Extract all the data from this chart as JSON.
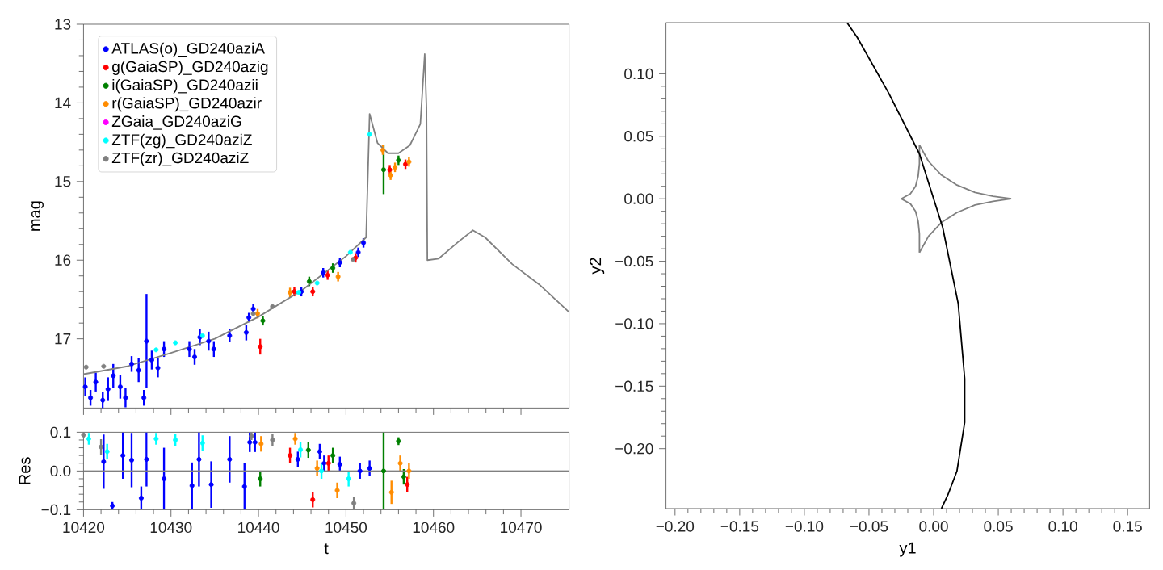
{
  "chart_data": [
    {
      "type": "scatter",
      "ylabel": "mag",
      "xlim": [
        10420,
        10475.5
      ],
      "ylim": [
        17.88,
        13
      ],
      "xticks": [
        10420,
        10430,
        10440,
        10450,
        10460,
        10470
      ],
      "yticks": [
        13,
        14,
        15,
        16,
        17
      ],
      "tick_labels": "y",
      "legend": "top left",
      "marker": "circle",
      "series": [
        {
          "name": "ATLAS(o)_GD240aziA",
          "color": "#0000ff",
          "x": [
            10420.2,
            10420.8,
            10421.4,
            10422.2,
            10422.8,
            10423.4,
            10424.2,
            10424.8,
            10425.5,
            10426.3,
            10426.9,
            10427.2,
            10427.8,
            10428.5,
            10429.2,
            10432.1,
            10432.7,
            10433.3,
            10434.3,
            10434.9,
            10436.7,
            10438.6,
            10438.9,
            10439.4,
            10444.9,
            10447.4,
            10449.3,
            10451.4,
            10452.0
          ],
          "values": [
            17.61,
            17.75,
            17.55,
            17.78,
            17.64,
            17.47,
            17.61,
            17.75,
            17.32,
            17.4,
            17.75,
            17.03,
            17.27,
            17.37,
            17.13,
            17.13,
            17.23,
            16.98,
            17.03,
            17.13,
            16.96,
            16.92,
            16.73,
            16.62,
            16.4,
            16.16,
            16.03,
            15.9,
            15.78
          ],
          "errors": [
            0.12,
            0.1,
            0.12,
            0.1,
            0.15,
            0.15,
            0.15,
            0.12,
            0.1,
            0.15,
            0.1,
            0.6,
            0.12,
            0.12,
            0.1,
            0.1,
            0.1,
            0.1,
            0.12,
            0.1,
            0.08,
            0.1,
            0.06,
            0.06,
            0.06,
            0.06,
            0.06,
            0.06,
            0.06
          ]
        },
        {
          "name": "g(GaiaSP)_GD240azig",
          "color": "#ff0000",
          "x": [
            10440.2,
            10444.1,
            10446.2,
            10447.9,
            10451.1,
            10455.0,
            10456.8
          ],
          "values": [
            17.1,
            16.4,
            16.4,
            16.19,
            15.97,
            14.85,
            14.78
          ],
          "errors": [
            0.1,
            0.06,
            0.06,
            0.06,
            0.06,
            0.06,
            0.06
          ]
        },
        {
          "name": "i(GaiaSP)_GD240azii",
          "color": "#008000",
          "x": [
            10440.5,
            10445.8,
            10448.5,
            10454.3,
            10456.0
          ],
          "values": [
            16.77,
            16.27,
            16.1,
            14.85,
            14.73
          ],
          "errors": [
            0.06,
            0.06,
            0.06,
            0.31,
            0.06
          ]
        },
        {
          "name": "r(GaiaSP)_GD240azir",
          "color": "#ff8c00",
          "x": [
            10439.9,
            10443.6,
            10449.1,
            10454.2,
            10455.1,
            10455.6,
            10457.2
          ],
          "values": [
            16.68,
            16.41,
            16.21,
            14.6,
            14.92,
            14.82,
            14.75
          ],
          "errors": [
            0.06,
            0.06,
            0.06,
            0.06,
            0.06,
            0.06,
            0.06
          ]
        },
        {
          "name": "ZGaia_GD240aziG",
          "color": "#ff00ff"
        },
        {
          "name": "ZTF(zg)_GD240aziZ",
          "color": "#00ffff",
          "x": [
            10428.3,
            10430.5,
            10433.6,
            10444.6,
            10446.7,
            10450.5,
            10452.7
          ],
          "values": [
            17.14,
            17.05,
            16.96,
            16.41,
            16.29,
            15.9,
            14.4
          ]
        },
        {
          "name": "ZTF(zr)_GD240aziZ",
          "color": "#808080",
          "x": [
            10420.3,
            10422.3,
            10439.4,
            10441.6,
            10450.8
          ],
          "values": [
            17.36,
            17.35,
            16.68,
            16.59,
            15.99
          ]
        },
        {
          "type": "line",
          "marker": "none",
          "color": "#808080",
          "x": [
            10420,
            10425,
            10430,
            10435,
            10440,
            10445,
            10450,
            10452.3,
            10452.7,
            10453.6,
            10454.8,
            10456,
            10457.3,
            10458.5,
            10459.0,
            10459.2,
            10459.3,
            10460.6,
            10462.8,
            10464.5,
            10465.9,
            10469.0,
            10472.1,
            10475.5
          ],
          "values": [
            17.45,
            17.35,
            17.18,
            17.0,
            16.72,
            16.38,
            15.95,
            15.71,
            14.14,
            14.51,
            14.64,
            14.64,
            14.54,
            14.27,
            13.38,
            14.06,
            16.0,
            15.98,
            15.77,
            15.62,
            15.71,
            16.05,
            16.31,
            16.66
          ]
        }
      ]
    },
    {
      "type": "scatter",
      "xlabel": "t",
      "ylabel": "Res",
      "xlim": [
        10420,
        10475.5
      ],
      "ylim": [
        -0.1,
        0.1
      ],
      "xticks": [
        10420,
        10430,
        10440,
        10450,
        10460,
        10470
      ],
      "yticks": [
        {
          "value": -0.1,
          "label": "−0.1"
        },
        {
          "value": 0,
          "label": "0.0"
        },
        {
          "value": 0.1,
          "label": "0.1"
        }
      ],
      "marker": "circle",
      "ref_lines": [
        {
          "axis": "y",
          "value": 0,
          "color": "#808080"
        }
      ],
      "series": [
        {
          "color": "#0000ff",
          "x": [
            10422.3,
            10423.3,
            10424.5,
            10425.5,
            10426.6,
            10427.2,
            10429.2,
            10432.4,
            10433.2,
            10434.6,
            10436.7,
            10438.4,
            10439.0,
            10439.6,
            10444.5,
            10447.0,
            10447.5,
            10449.3,
            10451.6,
            10452.7
          ],
          "values": [
            0.024,
            -0.09,
            0.04,
            0.028,
            -0.07,
            0.03,
            -0.02,
            -0.038,
            0.03,
            -0.035,
            0.03,
            -0.04,
            0.074,
            0.074,
            0.03,
            0.05,
            0.02,
            0.017,
            0.0,
            0.007
          ],
          "errors": [
            0.07,
            0.01,
            0.06,
            0.07,
            0.03,
            0.07,
            0.08,
            0.06,
            0.07,
            0.06,
            0.06,
            0.06,
            0.025,
            0.025,
            0.02,
            0.02,
            0.02,
            0.02,
            0.02,
            0.02
          ]
        },
        {
          "color": "#ff0000",
          "x": [
            10443.6,
            10446.2,
            10448.0,
            10457.0
          ],
          "values": [
            0.04,
            -0.074,
            0.02,
            -0.035
          ],
          "errors": [
            0.02,
            0.02,
            0.02,
            0.02
          ]
        },
        {
          "color": "#008000",
          "x": [
            10440.2,
            10445.7,
            10448.5,
            10454.3,
            10456.0,
            10456.6
          ],
          "values": [
            -0.02,
            0.054,
            0.04,
            0.0,
            0.077,
            -0.015
          ],
          "errors": [
            0.02,
            0.02,
            0.02,
            0.1,
            0.01,
            0.02
          ]
        },
        {
          "color": "#ff8c00",
          "x": [
            10440.3,
            10444.2,
            10446.7,
            10449.0,
            10455.2,
            10456.2,
            10457.2
          ],
          "values": [
            0.07,
            0.083,
            0.007,
            -0.05,
            -0.055,
            0.02,
            0.0
          ],
          "errors": [
            0.02,
            0.015,
            0.02,
            0.02,
            0.03,
            0.02,
            0.02
          ]
        },
        {
          "color": "#00ffff",
          "x": [
            10420.6,
            10422.7,
            10428.3,
            10430.5,
            10433.6,
            10444.8,
            10447.2,
            10450.3
          ],
          "values": [
            0.083,
            0.05,
            0.083,
            0.08,
            0.072,
            0.055,
            0.0,
            -0.02
          ],
          "errors": [
            0.015,
            0.02,
            0.015,
            0.015,
            0.02,
            0.02,
            0.02,
            0.02
          ]
        },
        {
          "color": "#808080",
          "x": [
            10420.0,
            10422.0,
            10439.2,
            10441.6,
            10450.9
          ],
          "values": [
            0.093,
            0.062,
            0.09,
            0.08,
            -0.083
          ],
          "errors": [
            0.007,
            0.02,
            0.01,
            0.015,
            0.015
          ]
        }
      ]
    },
    {
      "type": "line",
      "xlabel": "y1",
      "ylabel": "y2",
      "xlim": [
        -0.207,
        0.167
      ],
      "ylim": [
        -0.248,
        0.141
      ],
      "xticks": [
        {
          "value": -0.2,
          "label": "−0.20"
        },
        {
          "value": -0.15,
          "label": "−0.15"
        },
        {
          "value": -0.1,
          "label": "−0.10"
        },
        {
          "value": -0.05,
          "label": "−0.05"
        },
        {
          "value": 0,
          "label": "0.00"
        },
        {
          "value": 0.05,
          "label": "0.05"
        },
        {
          "value": 0.1,
          "label": "0.10"
        },
        {
          "value": 0.15,
          "label": "0.15"
        }
      ],
      "yticks": [
        {
          "value": -0.2,
          "label": "−0.20"
        },
        {
          "value": -0.15,
          "label": "−0.15"
        },
        {
          "value": -0.1,
          "label": "−0.10"
        },
        {
          "value": -0.05,
          "label": "−0.05"
        },
        {
          "value": 0,
          "label": "0.00"
        },
        {
          "value": 0.05,
          "label": "0.05"
        },
        {
          "value": 0.1,
          "label": "0.10"
        }
      ],
      "series": [
        {
          "color": "#808080",
          "x": [
            -0.025,
            -0.018,
            -0.014,
            -0.012,
            -0.011,
            -0.011
          ],
          "values": [
            0,
            0.004,
            0.01,
            0.018,
            0.028,
            0.043
          ]
        },
        {
          "color": "#808080",
          "x": [
            -0.011,
            -0.004,
            0.006,
            0.018,
            0.032,
            0.046,
            0.06
          ],
          "values": [
            0.043,
            0.03,
            0.019,
            0.011,
            0.005,
            0.002,
            0
          ]
        },
        {
          "color": "#808080",
          "x": [
            0.06,
            0.046,
            0.032,
            0.018,
            0.006,
            -0.004,
            -0.011
          ],
          "values": [
            0,
            -0.002,
            -0.005,
            -0.011,
            -0.019,
            -0.03,
            -0.043
          ]
        },
        {
          "color": "#808080",
          "x": [
            -0.011,
            -0.011,
            -0.012,
            -0.014,
            -0.018,
            -0.025
          ],
          "values": [
            -0.043,
            -0.028,
            -0.018,
            -0.01,
            -0.004,
            0
          ]
        },
        {
          "color": "#000000",
          "x": [
            -0.067,
            -0.059,
            -0.035,
            -0.011,
            0.007,
            0.019,
            0.024,
            0.024,
            0.018,
            0.011,
            0.006
          ],
          "values": [
            0.141,
            0.129,
            0.085,
            0.036,
            -0.023,
            -0.084,
            -0.144,
            -0.179,
            -0.218,
            -0.237,
            -0.248
          ]
        }
      ]
    }
  ]
}
